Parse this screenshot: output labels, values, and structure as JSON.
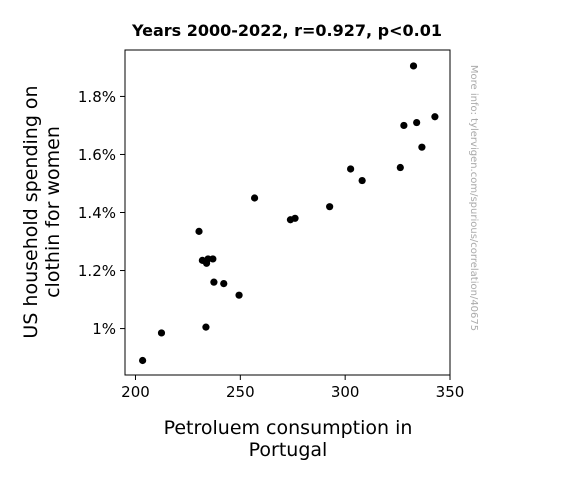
{
  "chart_data": {
    "type": "scatter",
    "title": "Years 2000-2022, r=0.927, p<0.01",
    "xlabel_lines": [
      "Petroluem consumption in",
      "Portugal"
    ],
    "ylabel_lines": [
      "US household spending on",
      "clothin for women"
    ],
    "watermark": "More info: tylervigen.com/spurious/correlation/40675",
    "xlim": [
      195,
      350
    ],
    "ylim": [
      0.84,
      1.96
    ],
    "x_ticks": [
      200,
      250,
      300,
      350
    ],
    "x_tick_labels": [
      "200",
      "250",
      "300",
      "350"
    ],
    "y_ticks": [
      1.0,
      1.2,
      1.4,
      1.6,
      1.8
    ],
    "y_tick_labels": [
      "1%",
      "1.2%",
      "1.4%",
      "1.6%",
      "1.8%"
    ],
    "grid": false,
    "legend": "none",
    "marker_color": "#000000",
    "points": [
      {
        "x": 203.4,
        "y": 0.89
      },
      {
        "x": 212.4,
        "y": 0.985
      },
      {
        "x": 230.3,
        "y": 1.335
      },
      {
        "x": 231.9,
        "y": 1.235
      },
      {
        "x": 233.6,
        "y": 1.005
      },
      {
        "x": 233.9,
        "y": 1.225
      },
      {
        "x": 234.6,
        "y": 1.24
      },
      {
        "x": 236.9,
        "y": 1.24
      },
      {
        "x": 237.4,
        "y": 1.16
      },
      {
        "x": 242.1,
        "y": 1.155
      },
      {
        "x": 249.4,
        "y": 1.115
      },
      {
        "x": 256.8,
        "y": 1.45
      },
      {
        "x": 273.9,
        "y": 1.375
      },
      {
        "x": 276.1,
        "y": 1.38
      },
      {
        "x": 292.6,
        "y": 1.42
      },
      {
        "x": 302.6,
        "y": 1.55
      },
      {
        "x": 308.1,
        "y": 1.51
      },
      {
        "x": 326.3,
        "y": 1.555
      },
      {
        "x": 328.0,
        "y": 1.7
      },
      {
        "x": 332.6,
        "y": 1.905
      },
      {
        "x": 334.1,
        "y": 1.71
      },
      {
        "x": 336.6,
        "y": 1.625
      },
      {
        "x": 342.8,
        "y": 1.73
      }
    ]
  }
}
